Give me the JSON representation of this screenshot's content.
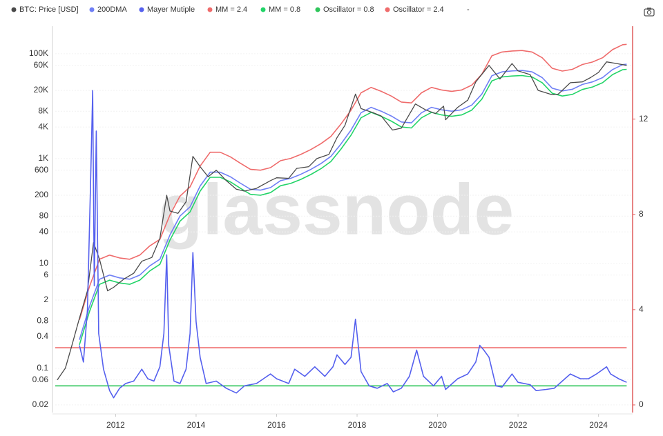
{
  "chart_data": {
    "type": "line",
    "watermark": "glassnode",
    "legend_note": "-",
    "ylog": true,
    "grid": true,
    "y2_axis_color": "#e05c5c",
    "xlim": [
      2010.5,
      2024.83
    ],
    "xticks": [
      2012,
      2014,
      2016,
      2018,
      2020,
      2022,
      2024
    ],
    "ylim": [
      0.0143,
      335000
    ],
    "yticks": [
      {
        "value": 100000,
        "label": "100K"
      },
      {
        "value": 60000,
        "label": "60K"
      },
      {
        "value": 20000,
        "label": "20K"
      },
      {
        "value": 8000,
        "label": "8K"
      },
      {
        "value": 4000,
        "label": "4K"
      },
      {
        "value": 1000,
        "label": "1K"
      },
      600,
      200,
      80,
      40,
      10,
      6,
      2,
      0.8,
      0.4,
      0.1,
      0.06,
      0.02
    ],
    "y2lim": [
      -0.32,
      15.9
    ],
    "y2ticks": [
      0,
      4,
      8,
      12
    ],
    "series": [
      {
        "name": "BTC: Price [USD]",
        "color": "#4a4a4a",
        "x": [
          2010.55,
          2010.75,
          2010.9,
          2011.1,
          2011.3,
          2011.45,
          2011.6,
          2011.8,
          2011.95,
          2012.2,
          2012.45,
          2012.65,
          2012.9,
          2013.1,
          2013.27,
          2013.35,
          2013.55,
          2013.75,
          2013.92,
          2014.1,
          2014.3,
          2014.5,
          2014.75,
          2015,
          2015.2,
          2015.5,
          2015.85,
          2016,
          2016.3,
          2016.5,
          2016.8,
          2017,
          2017.3,
          2017.5,
          2017.7,
          2017.96,
          2018.1,
          2018.4,
          2018.6,
          2018.88,
          2019.1,
          2019.45,
          2019.7,
          2019.95,
          2020.15,
          2020.2,
          2020.5,
          2020.75,
          2020.95,
          2021.28,
          2021.55,
          2021.85,
          2022,
          2022.3,
          2022.5,
          2022.85,
          2023,
          2023.3,
          2023.6,
          2023.8,
          2024,
          2024.2,
          2024.45,
          2024.7
        ],
        "values": [
          0.06,
          0.1,
          0.25,
          0.9,
          3,
          25,
          12,
          3,
          3.5,
          5,
          6.5,
          11,
          13,
          30,
          200,
          100,
          90,
          150,
          1100,
          700,
          450,
          600,
          380,
          260,
          240,
          270,
          380,
          430,
          420,
          650,
          700,
          1000,
          1200,
          2500,
          4300,
          17000,
          9000,
          7500,
          6500,
          3500,
          3800,
          11000,
          8500,
          7200,
          10000,
          5500,
          9500,
          13000,
          29000,
          60000,
          33000,
          65000,
          47000,
          40000,
          20000,
          16500,
          17000,
          28000,
          29000,
          35000,
          44000,
          70000,
          65000,
          60000
        ]
      },
      {
        "name": "200DMA",
        "color": "#6f7ff5",
        "x": [
          2011.1,
          2011.35,
          2011.6,
          2011.85,
          2012.1,
          2012.35,
          2012.6,
          2012.85,
          2013.1,
          2013.35,
          2013.6,
          2013.85,
          2014.1,
          2014.35,
          2014.6,
          2014.85,
          2015.1,
          2015.35,
          2015.6,
          2015.85,
          2016.1,
          2016.35,
          2016.6,
          2016.85,
          2017.1,
          2017.35,
          2017.6,
          2017.85,
          2018.1,
          2018.35,
          2018.6,
          2018.85,
          2019.1,
          2019.35,
          2019.6,
          2019.85,
          2020.1,
          2020.35,
          2020.6,
          2020.85,
          2021.1,
          2021.35,
          2021.6,
          2021.85,
          2022.1,
          2022.35,
          2022.6,
          2022.85,
          2023.1,
          2023.35,
          2023.6,
          2023.85,
          2024.1,
          2024.35,
          2024.6,
          2024.7
        ],
        "values": [
          0.35,
          1.5,
          5,
          6,
          5.3,
          5,
          6,
          9,
          12,
          35,
          80,
          120,
          300,
          550,
          550,
          450,
          340,
          260,
          250,
          280,
          380,
          420,
          500,
          620,
          800,
          1100,
          1900,
          3500,
          7500,
          9500,
          8000,
          6500,
          5000,
          4800,
          7500,
          9500,
          8500,
          8000,
          8500,
          10500,
          17000,
          38000,
          45000,
          47000,
          48000,
          45000,
          35000,
          22000,
          19500,
          21000,
          26000,
          29000,
          35000,
          50000,
          62000,
          63000
        ]
      },
      {
        "name": "Mayer Mutiple",
        "color": "#5560ee",
        "axis": "y2",
        "x": [
          2011.1,
          2011.2,
          2011.3,
          2011.38,
          2011.43,
          2011.47,
          2011.52,
          2011.58,
          2011.7,
          2011.85,
          2011.95,
          2012.1,
          2012.25,
          2012.45,
          2012.65,
          2012.8,
          2012.95,
          2013.1,
          2013.2,
          2013.27,
          2013.32,
          2013.45,
          2013.6,
          2013.75,
          2013.85,
          2013.92,
          2014,
          2014.1,
          2014.25,
          2014.5,
          2014.75,
          2015,
          2015.2,
          2015.5,
          2015.85,
          2016,
          2016.3,
          2016.45,
          2016.7,
          2016.95,
          2017.2,
          2017.4,
          2017.5,
          2017.7,
          2017.85,
          2017.96,
          2018.1,
          2018.3,
          2018.5,
          2018.75,
          2018.9,
          2019.1,
          2019.3,
          2019.48,
          2019.65,
          2019.9,
          2020.1,
          2020.2,
          2020.5,
          2020.75,
          2020.95,
          2021.05,
          2021.15,
          2021.28,
          2021.45,
          2021.6,
          2021.85,
          2022,
          2022.3,
          2022.45,
          2022.7,
          2022.9,
          2023.1,
          2023.3,
          2023.55,
          2023.75,
          2023.95,
          2024.2,
          2024.3,
          2024.5,
          2024.7
        ],
        "values": [
          2.5,
          1.8,
          4,
          9.5,
          13.2,
          5,
          11.5,
          3,
          1.5,
          0.6,
          0.3,
          0.7,
          0.9,
          1,
          1.5,
          1.1,
          1,
          1.6,
          3,
          6.3,
          2.5,
          1,
          0.9,
          1.5,
          3,
          6.4,
          3.5,
          2,
          0.9,
          1,
          0.7,
          0.5,
          0.8,
          0.9,
          1.3,
          1.1,
          0.9,
          1.5,
          1.2,
          1.6,
          1.2,
          1.6,
          2.1,
          1.7,
          2,
          3.6,
          1.4,
          0.8,
          0.7,
          0.9,
          0.55,
          0.7,
          1.2,
          2.3,
          1.2,
          0.8,
          1.2,
          0.65,
          1.1,
          1.3,
          1.8,
          2.5,
          2.3,
          2,
          0.8,
          0.75,
          1.3,
          0.95,
          0.85,
          0.6,
          0.65,
          0.7,
          1,
          1.3,
          1.1,
          1.1,
          1.3,
          1.6,
          1.3,
          1.1,
          0.95
        ]
      },
      {
        "name": "MM = 2.4",
        "color": "#ef6b6b",
        "x": [
          2011.1,
          2011.35,
          2011.6,
          2011.85,
          2012.1,
          2012.35,
          2012.6,
          2012.85,
          2013.1,
          2013.35,
          2013.6,
          2013.85,
          2014.1,
          2014.35,
          2014.6,
          2014.85,
          2015.1,
          2015.35,
          2015.6,
          2015.85,
          2016.1,
          2016.35,
          2016.6,
          2016.85,
          2017.1,
          2017.35,
          2017.6,
          2017.85,
          2018.1,
          2018.35,
          2018.6,
          2018.85,
          2019.1,
          2019.35,
          2019.6,
          2019.85,
          2020.1,
          2020.35,
          2020.6,
          2020.85,
          2021.1,
          2021.35,
          2021.6,
          2021.85,
          2022.1,
          2022.35,
          2022.6,
          2022.85,
          2023.1,
          2023.35,
          2023.6,
          2023.85,
          2024.1,
          2024.35,
          2024.6,
          2024.7
        ],
        "values": [
          0.84,
          3.6,
          12,
          14.4,
          12.72,
          12,
          14.4,
          21.6,
          28.8,
          84,
          192,
          288,
          720,
          1320,
          1320,
          1080,
          816,
          624,
          600,
          672,
          912,
          1008,
          1200,
          1488,
          1920,
          2640,
          4560,
          8400,
          18000,
          22800,
          19200,
          15600,
          12000,
          11520,
          18000,
          22800,
          20400,
          19200,
          20400,
          25200,
          40800,
          91200,
          108000,
          112800,
          115200,
          108000,
          84000,
          52800,
          46800,
          50400,
          62400,
          69600,
          84000,
          120000,
          148800,
          151200
        ]
      },
      {
        "name": "MM = 0.8",
        "color": "#22d468",
        "x": [
          2011.1,
          2011.35,
          2011.6,
          2011.85,
          2012.1,
          2012.35,
          2012.6,
          2012.85,
          2013.1,
          2013.35,
          2013.6,
          2013.85,
          2014.1,
          2014.35,
          2014.6,
          2014.85,
          2015.1,
          2015.35,
          2015.6,
          2015.85,
          2016.1,
          2016.35,
          2016.6,
          2016.85,
          2017.1,
          2017.35,
          2017.6,
          2017.85,
          2018.1,
          2018.35,
          2018.6,
          2018.85,
          2019.1,
          2019.35,
          2019.6,
          2019.85,
          2020.1,
          2020.35,
          2020.6,
          2020.85,
          2021.1,
          2021.35,
          2021.6,
          2021.85,
          2022.1,
          2022.35,
          2022.6,
          2022.85,
          2023.1,
          2023.35,
          2023.6,
          2023.85,
          2024.1,
          2024.35,
          2024.6,
          2024.7
        ],
        "values": [
          0.28,
          1.2,
          4,
          4.8,
          4.24,
          4,
          4.8,
          7.2,
          9.6,
          28,
          64,
          96,
          240,
          440,
          440,
          360,
          272,
          208,
          200,
          224,
          304,
          336,
          400,
          496,
          640,
          880,
          1520,
          2800,
          6000,
          7600,
          6400,
          5200,
          4000,
          3840,
          6000,
          7600,
          6800,
          6400,
          6800,
          8400,
          13600,
          30400,
          36000,
          37600,
          38400,
          36000,
          28000,
          17600,
          15600,
          16800,
          20800,
          23200,
          28000,
          40000,
          49600,
          50400
        ]
      },
      {
        "name": "Oscillator = 0.8",
        "color": "#2ec55a",
        "axis": "y2",
        "x": [
          2010.5,
          2024.7
        ],
        "values": [
          0.8,
          0.8
        ]
      },
      {
        "name": "Oscillator = 2.4",
        "color": "#ef6b6b",
        "axis": "y2",
        "x": [
          2010.5,
          2024.7
        ],
        "values": [
          2.4,
          2.4
        ]
      }
    ]
  }
}
